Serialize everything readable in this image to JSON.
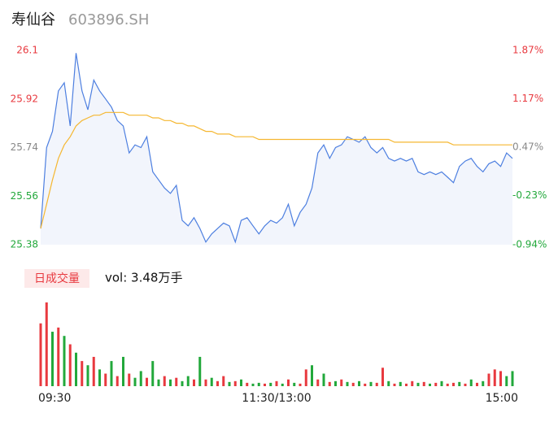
{
  "chart_data": [
    {
      "type": "line",
      "title": "寿仙谷",
      "subtitle": "603896.SH",
      "xlim": [
        0,
        240
      ],
      "x": [
        0,
        3,
        6,
        9,
        12,
        15,
        18,
        21,
        24,
        27,
        30,
        33,
        36,
        39,
        42,
        45,
        48,
        51,
        54,
        57,
        60,
        63,
        66,
        69,
        72,
        75,
        78,
        81,
        84,
        87,
        90,
        93,
        96,
        99,
        102,
        105,
        108,
        111,
        114,
        117,
        120,
        123,
        126,
        129,
        132,
        135,
        138,
        141,
        144,
        147,
        150,
        153,
        156,
        159,
        162,
        165,
        168,
        171,
        174,
        177,
        180,
        183,
        186,
        189,
        192,
        195,
        198,
        201,
        204,
        207,
        210,
        213,
        216,
        219,
        222,
        225,
        228,
        231,
        234,
        237,
        240
      ],
      "ylim": [
        25.38,
        26.1
      ],
      "yticks": [
        25.38,
        25.56,
        25.74,
        25.92,
        26.1
      ],
      "y2lim": [
        -0.94,
        1.87
      ],
      "y2ticks": [
        {
          "value": -0.94,
          "label": "-0.94%"
        },
        {
          "value": -0.23,
          "label": "-0.23%"
        },
        {
          "value": 0.47,
          "label": "0.47%"
        },
        {
          "value": 1.17,
          "label": "1.17%"
        },
        {
          "value": 1.87,
          "label": "1.87%"
        }
      ],
      "series": [
        {
          "color": "#4d7fe0",
          "fill": "#f2f5fc",
          "values": [
            25.44,
            25.74,
            25.8,
            25.95,
            25.98,
            25.82,
            26.09,
            25.95,
            25.88,
            25.99,
            25.95,
            25.92,
            25.89,
            25.84,
            25.82,
            25.72,
            25.75,
            25.74,
            25.78,
            25.65,
            25.62,
            25.59,
            25.57,
            25.6,
            25.47,
            25.45,
            25.48,
            25.44,
            25.39,
            25.42,
            25.44,
            25.46,
            25.45,
            25.39,
            25.47,
            25.48,
            25.45,
            25.42,
            25.45,
            25.47,
            25.46,
            25.48,
            25.53,
            25.45,
            25.5,
            25.53,
            25.59,
            25.72,
            25.75,
            25.7,
            25.74,
            25.75,
            25.78,
            25.77,
            25.76,
            25.78,
            25.74,
            25.72,
            25.74,
            25.7,
            25.69,
            25.7,
            25.69,
            25.7,
            25.65,
            25.64,
            25.65,
            25.64,
            25.65,
            25.63,
            25.61,
            25.67,
            25.69,
            25.7,
            25.67,
            25.65,
            25.68,
            25.69,
            25.67,
            25.72,
            25.7
          ]
        },
        {
          "color": "#f5b731",
          "values": [
            25.44,
            25.53,
            25.62,
            25.7,
            25.75,
            25.78,
            25.82,
            25.84,
            25.85,
            25.86,
            25.86,
            25.87,
            25.87,
            25.87,
            25.87,
            25.86,
            25.86,
            25.86,
            25.86,
            25.85,
            25.85,
            25.84,
            25.84,
            25.83,
            25.83,
            25.82,
            25.82,
            25.81,
            25.8,
            25.8,
            25.79,
            25.79,
            25.79,
            25.78,
            25.78,
            25.78,
            25.78,
            25.77,
            25.77,
            25.77,
            25.77,
            25.77,
            25.77,
            25.77,
            25.77,
            25.77,
            25.77,
            25.77,
            25.77,
            25.77,
            25.77,
            25.77,
            25.77,
            25.77,
            25.77,
            25.77,
            25.77,
            25.77,
            25.77,
            25.77,
            25.76,
            25.76,
            25.76,
            25.76,
            25.76,
            25.76,
            25.76,
            25.76,
            25.76,
            25.76,
            25.75,
            25.75,
            25.75,
            25.75,
            25.75,
            25.75,
            25.75,
            25.75,
            25.75,
            25.75,
            25.75
          ]
        }
      ]
    },
    {
      "type": "bar",
      "label": "日成交量",
      "subtitle": "vol: 3.48万手",
      "xlim": [
        0,
        240
      ],
      "xticks": [
        {
          "value": 0,
          "label": "09:30"
        },
        {
          "value": 120,
          "label": "11:30/13:00"
        },
        {
          "value": 240,
          "label": "15:00"
        }
      ],
      "ylim": [
        0,
        100
      ],
      "x": [
        0,
        3,
        6,
        9,
        12,
        15,
        18,
        21,
        24,
        27,
        30,
        33,
        36,
        39,
        42,
        45,
        48,
        51,
        54,
        57,
        60,
        63,
        66,
        69,
        72,
        75,
        78,
        81,
        84,
        87,
        90,
        93,
        96,
        99,
        102,
        105,
        108,
        111,
        114,
        117,
        120,
        123,
        126,
        129,
        132,
        135,
        138,
        141,
        144,
        147,
        150,
        153,
        156,
        159,
        162,
        165,
        168,
        171,
        174,
        177,
        180,
        183,
        186,
        189,
        192,
        195,
        198,
        201,
        204,
        207,
        210,
        213,
        216,
        219,
        222,
        225,
        228,
        231,
        234,
        237,
        240
      ],
      "values": [
        75,
        100,
        65,
        70,
        60,
        50,
        40,
        30,
        25,
        35,
        20,
        15,
        30,
        12,
        35,
        15,
        10,
        18,
        10,
        30,
        8,
        12,
        8,
        10,
        6,
        12,
        8,
        35,
        8,
        10,
        6,
        12,
        5,
        6,
        8,
        4,
        3,
        4,
        3,
        4,
        6,
        3,
        8,
        4,
        3,
        20,
        25,
        8,
        15,
        5,
        6,
        8,
        5,
        4,
        6,
        3,
        5,
        4,
        22,
        6,
        3,
        5,
        3,
        6,
        4,
        5,
        3,
        4,
        6,
        3,
        4,
        5,
        3,
        8,
        4,
        6,
        15,
        20,
        18,
        12,
        18
      ],
      "colors": [
        "#e8393f",
        "#e8393f",
        "#22a83b",
        "#e8393f",
        "#22a83b",
        "#e8393f",
        "#22a83b",
        "#e8393f",
        "#22a83b",
        "#e8393f",
        "#22a83b",
        "#e8393f",
        "#22a83b",
        "#e8393f",
        "#22a83b",
        "#e8393f",
        "#22a83b",
        "#22a83b",
        "#e8393f",
        "#22a83b",
        "#22a83b",
        "#e8393f",
        "#22a83b",
        "#e8393f",
        "#22a83b",
        "#22a83b",
        "#e8393f",
        "#22a83b",
        "#e8393f",
        "#22a83b",
        "#e8393f",
        "#e8393f",
        "#22a83b",
        "#e8393f",
        "#22a83b",
        "#e8393f",
        "#22a83b",
        "#22a83b",
        "#e8393f",
        "#22a83b",
        "#e8393f",
        "#22a83b",
        "#e8393f",
        "#22a83b",
        "#e8393f",
        "#e8393f",
        "#22a83b",
        "#e8393f",
        "#22a83b",
        "#e8393f",
        "#22a83b",
        "#e8393f",
        "#22a83b",
        "#e8393f",
        "#22a83b",
        "#e8393f",
        "#22a83b",
        "#e8393f",
        "#e8393f",
        "#22a83b",
        "#e8393f",
        "#22a83b",
        "#e8393f",
        "#e8393f",
        "#22a83b",
        "#e8393f",
        "#22a83b",
        "#e8393f",
        "#22a83b",
        "#e8393f",
        "#e8393f",
        "#22a83b",
        "#e8393f",
        "#22a83b",
        "#e8393f",
        "#22a83b",
        "#e8393f",
        "#e8393f",
        "#e8393f",
        "#22a83b",
        "#22a83b"
      ]
    }
  ]
}
